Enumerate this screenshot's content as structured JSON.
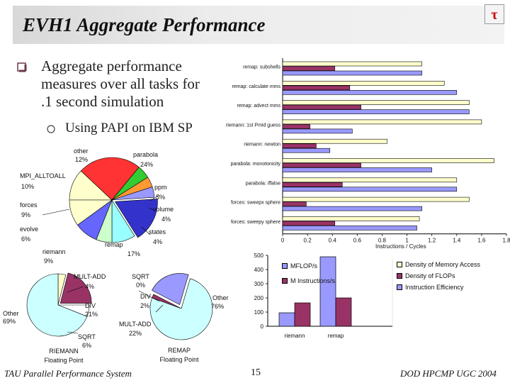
{
  "slide": {
    "title": "EVH1 Aggregate Performance",
    "bullet_main": "Aggregate performance measures over all tasks for .1 second simulation",
    "bullet_sub": "Using PAPI on IBM SP",
    "footer_left": "TAU Parallel Performance System",
    "page_number": "15",
    "footer_right": "DOD HPCMP UGC 2004"
  },
  "colors": {
    "memory": "#ffffcc",
    "flops": "#993366",
    "instr": "#9999ff",
    "mflops_bar": "#9999ff",
    "minstr_bar": "#993366"
  },
  "chart_data": [
    {
      "type": "bar",
      "orientation": "horizontal",
      "categories": [
        "remap: subshells",
        "remap: calculate mms",
        "remap: advect mms",
        "riemann: 1st Pmid guess",
        "riemann: newton",
        "parabola: monotonicity",
        "parabola: iffalse",
        "forces: sweepx sphere",
        "forces: sweepy sphere"
      ],
      "series": [
        {
          "name": "Density of Memory Access",
          "values": [
            1.12,
            1.3,
            1.5,
            1.6,
            0.84,
            1.7,
            1.4,
            1.5,
            1.1
          ]
        },
        {
          "name": "Density of FLOPs",
          "values": [
            0.42,
            0.54,
            0.63,
            0.22,
            0.27,
            0.63,
            0.48,
            0.19,
            0.42
          ]
        },
        {
          "name": "Instruction Efficiency",
          "values": [
            1.12,
            1.4,
            1.5,
            0.56,
            0.38,
            1.2,
            1.4,
            1.12,
            1.08
          ]
        }
      ],
      "xticks": [
        "0",
        "0.2",
        "0.4",
        "0.6",
        "0.8",
        "1",
        "1.2",
        "1.4",
        "1.6",
        "1.8"
      ],
      "xlim": [
        0,
        1.8
      ],
      "xlabel": "Instructions / Cycles",
      "legend_position": "bottom-right"
    },
    {
      "type": "bar",
      "categories": [
        "riemann",
        "remap"
      ],
      "series": [
        {
          "name": "MFLOP/s",
          "values": [
            95,
            490
          ]
        },
        {
          "name": "M Instructions/s",
          "values": [
            165,
            200
          ]
        }
      ],
      "yticks": [
        "0",
        "100",
        "200",
        "300",
        "400",
        "500"
      ],
      "ylim": [
        0,
        500
      ],
      "legend_position": "top-left"
    },
    {
      "type": "pie",
      "labels": [
        "other",
        "parabola",
        "ppm",
        "volume",
        "states",
        "remap",
        "riemann",
        "evolve",
        "forces",
        "MPI_ALLTOALL"
      ],
      "values": [
        12,
        24,
        5,
        4,
        4,
        17,
        9,
        6,
        9,
        10
      ],
      "label_texts": [
        "12%",
        "24%",
        "5%",
        "4%",
        "4%",
        "17%",
        "9%",
        "6%",
        "9%",
        "10%"
      ],
      "colors": [
        "#ffffcc",
        "#ff3333",
        "#33cc33",
        "#ff9933",
        "#9999ff",
        "#3333cc",
        "#99ffff",
        "#ccffcc",
        "#6666ff",
        "#ffffcc"
      ]
    },
    {
      "type": "pie",
      "title": "RIEMANN Floating Point",
      "labels": [
        "MULT-ADD",
        "DIV",
        "SQRT",
        "Other"
      ],
      "values": [
        4,
        21,
        6,
        69
      ],
      "label_texts": [
        "4%",
        "21%",
        "6%",
        "69%"
      ],
      "colors": [
        "#ffffcc",
        "#993366",
        "#ffffff",
        "#ccffff"
      ]
    },
    {
      "type": "pie",
      "title": "REMAP Floating Point",
      "labels": [
        "SQRT",
        "DIV",
        "MULT-ADD",
        "Other"
      ],
      "values": [
        0,
        2,
        22,
        76
      ],
      "label_texts": [
        "0%",
        "2%",
        "22%",
        "76%"
      ],
      "colors": [
        "#ffffff",
        "#993366",
        "#9999ff",
        "#ccffff"
      ]
    }
  ]
}
